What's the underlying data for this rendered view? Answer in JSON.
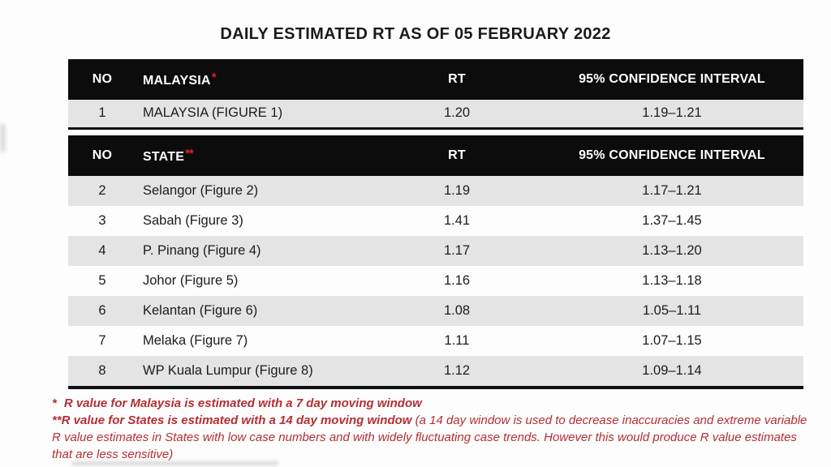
{
  "title": "DAILY ESTIMATED RT AS OF 05 FEBRUARY 2022",
  "malaysia_table": {
    "headers": {
      "no": "NO",
      "name": "MALAYSIA",
      "name_mark": "*",
      "rt": "RT",
      "ci": "95% CONFIDENCE INTERVAL"
    },
    "rows": [
      {
        "no": "1",
        "name": "MALAYSIA (FIGURE 1)",
        "rt": "1.20",
        "ci": "1.19–1.21"
      }
    ]
  },
  "state_table": {
    "headers": {
      "no": "NO",
      "name": "STATE",
      "name_mark": "**",
      "rt": "RT",
      "ci": "95% CONFIDENCE INTERVAL"
    },
    "rows": [
      {
        "no": "2",
        "name": "Selangor (Figure 2)",
        "rt": "1.19",
        "ci": "1.17–1.21"
      },
      {
        "no": "3",
        "name": "Sabah (Figure 3)",
        "rt": "1.41",
        "ci": "1.37–1.45"
      },
      {
        "no": "4",
        "name": "P. Pinang (Figure 4)",
        "rt": "1.17",
        "ci": "1.13–1.20"
      },
      {
        "no": "5",
        "name": "Johor (Figure 5)",
        "rt": "1.16",
        "ci": "1.13–1.18"
      },
      {
        "no": "6",
        "name": "Kelantan (Figure 6)",
        "rt": "1.08",
        "ci": "1.05–1.11"
      },
      {
        "no": "7",
        "name": "Melaka (Figure 7)",
        "rt": "1.11",
        "ci": "1.07–1.15"
      },
      {
        "no": "8",
        "name": "WP Kuala Lumpur (Figure 8)",
        "rt": "1.12",
        "ci": "1.09–1.14"
      }
    ]
  },
  "footnotes": {
    "note1_marker": "*",
    "note1_text": "R value for Malaysia is estimated with a 7 day moving window",
    "note2_bold": "**R value for States is estimated with a 14 day moving window ",
    "note2_regular": "(a 14 day window is used to decrease inaccuracies and extreme variable R value estimates in States with low case numbers and with widely fluctuating case trends. However this would produce R value estimates that are less sensitive)"
  },
  "colors": {
    "header_bg": "#0c0c0c",
    "header_text": "#ffffff",
    "row_gray": "#e4e4e4",
    "row_white": "#fdfdfd",
    "asterisk_red": "#e02020",
    "footnote_red": "#b42e33"
  }
}
